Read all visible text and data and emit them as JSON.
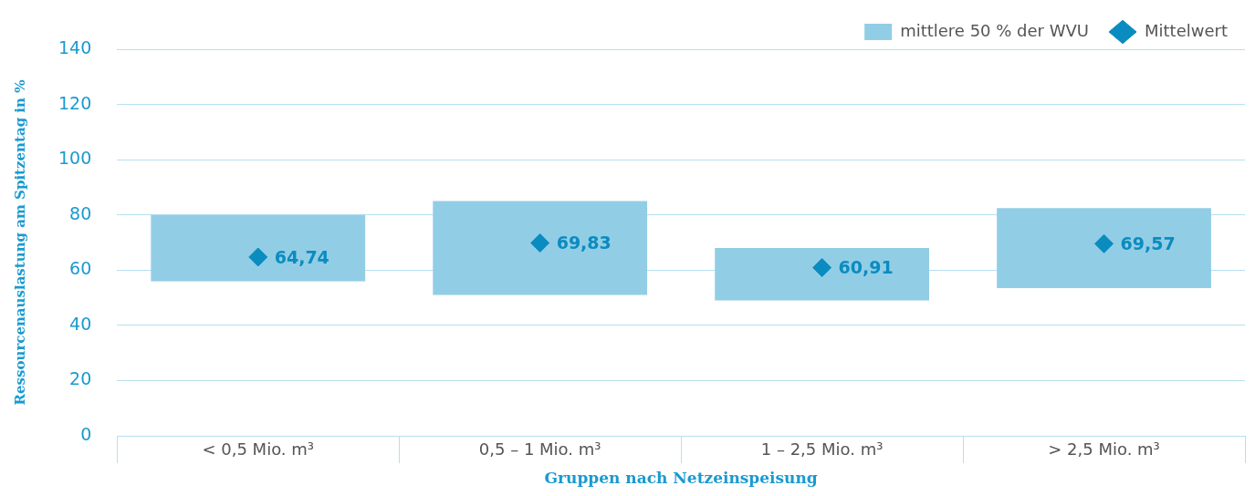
{
  "chart_data": {
    "type": "bar",
    "xlabel": "Gruppen nach Netzeinspeisung",
    "ylabel": "Ressourcenauslastung am Spitzentag in %",
    "categories": [
      "< 0,5 Mio. m³",
      "0,5 – 1 Mio. m³",
      "1 – 2,5 Mio. m³",
      "> 2,5 Mio. m³"
    ],
    "series": [
      {
        "name": "mittlere 50 % der WVU",
        "color": "#92cde6",
        "base": [
          56,
          51,
          49,
          53.5
        ],
        "values": [
          24,
          34,
          19,
          29
        ]
      },
      {
        "name": "Mittelwert",
        "type": "scatter",
        "marker": "diamond",
        "color": "#0a8cc0",
        "x": [
          "< 0,5 Mio. m³",
          "0,5 – 1 Mio. m³",
          "1 – 2,5 Mio. m³",
          "> 2,5 Mio. m³"
        ],
        "values": [
          64.74,
          69.83,
          60.91,
          69.57
        ],
        "value_labels": [
          "64,74",
          "69,83",
          "60,91",
          "69,57"
        ]
      }
    ],
    "ylim": [
      0,
      140
    ],
    "yticks": [
      0,
      20,
      40,
      60,
      80,
      100,
      120,
      140
    ],
    "grid": "y",
    "legend": "top right"
  }
}
